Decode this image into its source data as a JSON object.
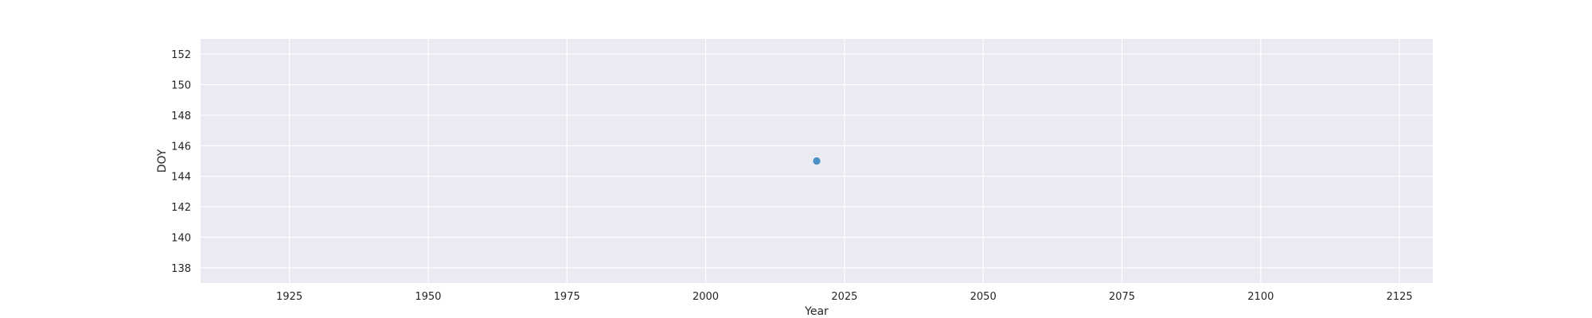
{
  "chart_data": {
    "type": "scatter",
    "title": "",
    "xlabel": "Year",
    "ylabel": "DOY",
    "xlim": [
      1909,
      2131
    ],
    "ylim": [
      137,
      153
    ],
    "x_ticks": [
      1925,
      1950,
      1975,
      2000,
      2025,
      2050,
      2075,
      2100,
      2125
    ],
    "y_ticks": [
      138,
      140,
      142,
      144,
      146,
      148,
      150,
      152
    ],
    "grid": true,
    "series": [
      {
        "points": [
          {
            "x": 2020,
            "y": 145
          }
        ]
      }
    ],
    "colors": {
      "background": "#eaeaf2",
      "grid": "#ffffff",
      "point": "#4c8fc4",
      "text": "#262626"
    }
  }
}
